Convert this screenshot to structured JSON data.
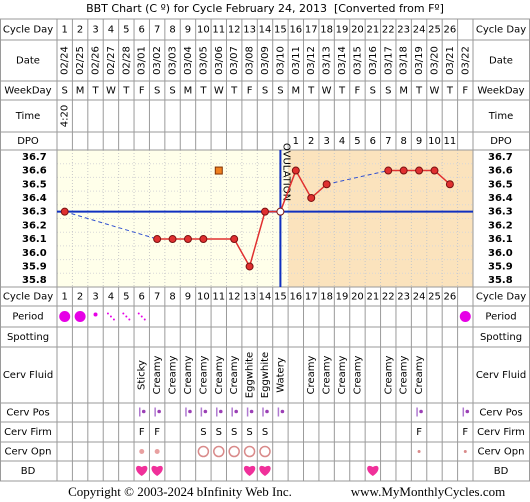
{
  "title": "BBT Chart (C º) for Cycle February 24, 2013  [Converted from Fº]",
  "row_labels": [
    "Cycle Day",
    "Date",
    "WeekDay",
    "Time",
    "DPO",
    "Cycle Day",
    "Period",
    "Spotting",
    "Cerv Fluid",
    "Cerv Pos",
    "Cerv Firm",
    "Cerv Opn",
    "BD"
  ],
  "cycle_days": [
    1,
    2,
    3,
    4,
    5,
    6,
    7,
    8,
    9,
    10,
    11,
    12,
    13,
    14,
    15,
    16,
    17,
    18,
    19,
    20,
    21,
    22,
    23,
    24,
    25,
    26,
    null
  ],
  "dates": [
    "02/24",
    "02/25",
    "02/26",
    "02/27",
    "02/28",
    "03/01",
    "03/02",
    "03/03",
    "03/04",
    "03/05",
    "03/06",
    "03/07",
    "03/08",
    "03/09",
    "03/10",
    "03/11",
    "03/12",
    "03/13",
    "03/14",
    "03/15",
    "03/16",
    "03/17",
    "03/18",
    "03/19",
    "03/20",
    "03/21",
    "03/22"
  ],
  "weekdays": [
    "S",
    "M",
    "T",
    "W",
    "T",
    "F",
    "S",
    "S",
    "M",
    "T",
    "W",
    "T",
    "F",
    "S",
    "S",
    "M",
    "T",
    "W",
    "T",
    "F",
    "S",
    "S",
    "M",
    "T",
    "W",
    "T",
    "F"
  ],
  "time": [
    "4:20",
    null,
    null,
    null,
    null,
    null,
    null,
    null,
    null,
    null,
    null,
    null,
    null,
    null,
    null,
    null,
    null,
    null,
    null,
    null,
    null,
    null,
    null,
    null,
    null,
    null,
    null
  ],
  "dpo": [
    null,
    null,
    null,
    null,
    null,
    null,
    null,
    null,
    null,
    null,
    null,
    null,
    null,
    null,
    null,
    1,
    2,
    3,
    4,
    5,
    6,
    7,
    8,
    9,
    10,
    11,
    null
  ],
  "chart_data": {
    "type": "line",
    "ovulation_label": "OVULATION",
    "series": [
      {
        "color": "#e03030",
        "values": [
          36.3,
          null,
          null,
          null,
          null,
          null,
          36.1,
          36.1,
          36.1,
          36.1,
          null,
          36.1,
          35.9,
          36.3,
          36.3,
          36.6,
          36.4,
          36.5,
          null,
          null,
          null,
          36.6,
          36.6,
          36.6,
          36.6,
          36.5,
          null
        ]
      }
    ],
    "discarded_values": [
      null,
      null,
      null,
      null,
      null,
      null,
      null,
      null,
      null,
      null,
      36.6,
      null,
      null,
      null,
      null,
      null,
      null,
      null,
      null,
      null,
      null,
      null,
      null,
      null,
      null,
      null,
      null
    ],
    "coverline": 36.3,
    "ylim": [
      35.75,
      36.75
    ],
    "yticks": [
      36.7,
      36.6,
      36.5,
      36.4,
      36.3,
      36.2,
      36.1,
      {
        "value": 36.0,
        "label": "36.0"
      },
      35.9,
      35.8
    ]
  },
  "cerv_fluid": [
    null,
    null,
    null,
    null,
    null,
    "Sticky",
    "Creamy",
    "Creamy",
    "Creamy",
    "Creamy",
    "Creamy",
    "Creamy",
    "Eggwhite",
    "Eggwhite",
    "Watery",
    null,
    "Creamy",
    "Creamy",
    "Creamy",
    "Creamy",
    null,
    "Creamy",
    "Creamy",
    "Creamy",
    null,
    null,
    null
  ],
  "cerv_firm": [
    null,
    null,
    null,
    null,
    null,
    "F",
    "F",
    null,
    null,
    "S",
    "S",
    "S",
    "S",
    "S",
    null,
    null,
    null,
    null,
    null,
    null,
    null,
    null,
    null,
    "F",
    null,
    null,
    "F"
  ],
  "footer": [
    "Copyright © 2003-2024 bInfinity Web Inc.",
    "www.MyMonthlyCycles.com"
  ]
}
